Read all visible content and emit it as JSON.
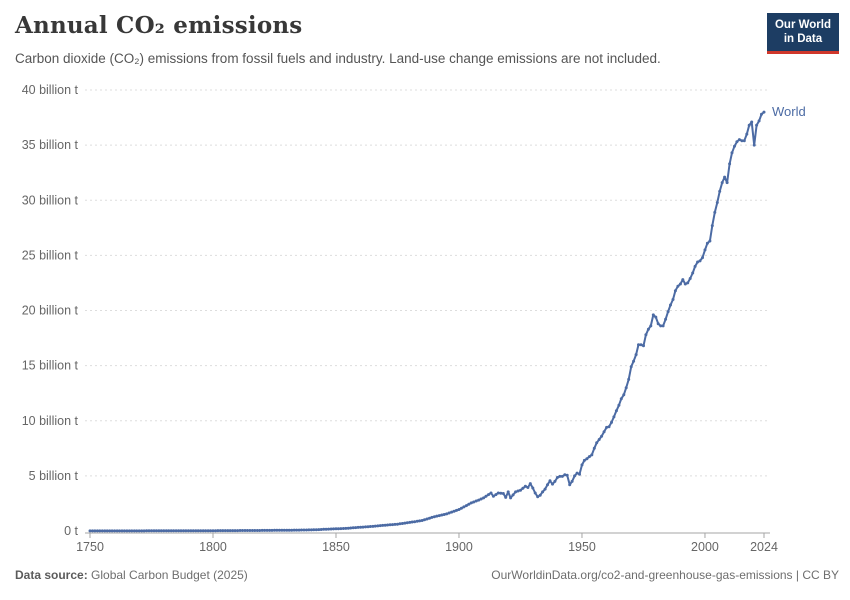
{
  "header": {
    "title": "Annual CO₂ emissions",
    "subtitle": "Carbon dioxide (CO₂) emissions from fossil fuels and industry. Land-use change emissions are not included.",
    "logo": {
      "line1": "Our World",
      "line2": "in Data"
    }
  },
  "footer": {
    "source_label": "Data source:",
    "source_text": " Global Carbon Budget (2025)",
    "rights_text": "OurWorldinData.org/co2-and-greenhouse-gas-emissions | CC BY"
  },
  "colors": {
    "line": "#4C6BA4",
    "grid": "#DDDDDD",
    "axis": "#A5A5A5",
    "tick_text": "#666666",
    "logo_bg": "#1D3D63",
    "logo_accent": "#D0372B",
    "title_text": "#383838",
    "subtitle_text": "#555555"
  },
  "chart_data": {
    "type": "line",
    "title": "Annual CO₂ emissions",
    "xlabel": "",
    "ylabel": "",
    "unit": "billion t",
    "xlim": [
      1750,
      2024
    ],
    "ylim": [
      0,
      40
    ],
    "grid": "horizontal-dashed",
    "legend": "end-of-line-label",
    "line_color": "#4C6BA4",
    "x_ticks": [
      {
        "year": 1750,
        "label": "1750"
      },
      {
        "year": 1800,
        "label": "1800"
      },
      {
        "year": 1850,
        "label": "1850"
      },
      {
        "year": 1900,
        "label": "1900"
      },
      {
        "year": 1950,
        "label": "1950"
      },
      {
        "year": 2000,
        "label": "2000"
      },
      {
        "year": 2024,
        "label": "2024"
      }
    ],
    "y_ticks": [
      {
        "value": 0,
        "label": "0 t"
      },
      {
        "value": 5,
        "label": "5 billion t"
      },
      {
        "value": 10,
        "label": "10 billion t"
      },
      {
        "value": 15,
        "label": "15 billion t"
      },
      {
        "value": 20,
        "label": "20 billion t"
      },
      {
        "value": 25,
        "label": "25 billion t"
      },
      {
        "value": 30,
        "label": "30 billion t"
      },
      {
        "value": 35,
        "label": "35 billion t"
      },
      {
        "value": 40,
        "label": "40 billion t"
      }
    ],
    "series": [
      {
        "name": "World",
        "points": [
          [
            1750,
            0.009
          ],
          [
            1760,
            0.011
          ],
          [
            1770,
            0.013
          ],
          [
            1780,
            0.016
          ],
          [
            1790,
            0.02
          ],
          [
            1800,
            0.03
          ],
          [
            1810,
            0.04
          ],
          [
            1820,
            0.05
          ],
          [
            1830,
            0.07
          ],
          [
            1840,
            0.1
          ],
          [
            1850,
            0.2
          ],
          [
            1855,
            0.25
          ],
          [
            1860,
            0.34
          ],
          [
            1865,
            0.42
          ],
          [
            1870,
            0.53
          ],
          [
            1875,
            0.62
          ],
          [
            1880,
            0.78
          ],
          [
            1885,
            0.95
          ],
          [
            1890,
            1.3
          ],
          [
            1895,
            1.55
          ],
          [
            1900,
            1.95
          ],
          [
            1903,
            2.3
          ],
          [
            1905,
            2.55
          ],
          [
            1908,
            2.8
          ],
          [
            1910,
            3.0
          ],
          [
            1913,
            3.45
          ],
          [
            1914,
            3.15
          ],
          [
            1916,
            3.45
          ],
          [
            1918,
            3.4
          ],
          [
            1919,
            3.05
          ],
          [
            1920,
            3.55
          ],
          [
            1921,
            3.0
          ],
          [
            1923,
            3.55
          ],
          [
            1925,
            3.7
          ],
          [
            1927,
            4.05
          ],
          [
            1928,
            3.95
          ],
          [
            1929,
            4.3
          ],
          [
            1930,
            3.9
          ],
          [
            1931,
            3.45
          ],
          [
            1932,
            3.1
          ],
          [
            1933,
            3.25
          ],
          [
            1934,
            3.55
          ],
          [
            1935,
            3.8
          ],
          [
            1936,
            4.2
          ],
          [
            1937,
            4.55
          ],
          [
            1938,
            4.25
          ],
          [
            1939,
            4.5
          ],
          [
            1940,
            4.85
          ],
          [
            1941,
            4.95
          ],
          [
            1942,
            4.95
          ],
          [
            1943,
            5.1
          ],
          [
            1944,
            5.05
          ],
          [
            1945,
            4.2
          ],
          [
            1946,
            4.5
          ],
          [
            1947,
            5.0
          ],
          [
            1948,
            5.25
          ],
          [
            1949,
            5.15
          ],
          [
            1950,
            6.0
          ],
          [
            1951,
            6.4
          ],
          [
            1952,
            6.55
          ],
          [
            1953,
            6.75
          ],
          [
            1954,
            6.9
          ],
          [
            1955,
            7.5
          ],
          [
            1956,
            8.0
          ],
          [
            1957,
            8.3
          ],
          [
            1958,
            8.6
          ],
          [
            1959,
            9.0
          ],
          [
            1960,
            9.4
          ],
          [
            1961,
            9.45
          ],
          [
            1962,
            9.85
          ],
          [
            1963,
            10.35
          ],
          [
            1964,
            10.9
          ],
          [
            1965,
            11.4
          ],
          [
            1966,
            12.0
          ],
          [
            1967,
            12.35
          ],
          [
            1968,
            13.0
          ],
          [
            1969,
            13.75
          ],
          [
            1970,
            14.9
          ],
          [
            1971,
            15.4
          ],
          [
            1972,
            16.0
          ],
          [
            1973,
            16.9
          ],
          [
            1974,
            16.9
          ],
          [
            1975,
            16.8
          ],
          [
            1976,
            17.8
          ],
          [
            1977,
            18.3
          ],
          [
            1978,
            18.6
          ],
          [
            1979,
            19.6
          ],
          [
            1980,
            19.4
          ],
          [
            1981,
            18.8
          ],
          [
            1982,
            18.6
          ],
          [
            1983,
            18.6
          ],
          [
            1984,
            19.2
          ],
          [
            1985,
            19.9
          ],
          [
            1986,
            20.5
          ],
          [
            1987,
            21.0
          ],
          [
            1988,
            21.8
          ],
          [
            1989,
            22.2
          ],
          [
            1990,
            22.4
          ],
          [
            1991,
            22.8
          ],
          [
            1992,
            22.4
          ],
          [
            1993,
            22.5
          ],
          [
            1994,
            22.9
          ],
          [
            1995,
            23.4
          ],
          [
            1996,
            24.0
          ],
          [
            1997,
            24.4
          ],
          [
            1998,
            24.5
          ],
          [
            1999,
            24.8
          ],
          [
            2000,
            25.5
          ],
          [
            2001,
            26.1
          ],
          [
            2002,
            26.3
          ],
          [
            2003,
            27.7
          ],
          [
            2004,
            28.9
          ],
          [
            2005,
            29.8
          ],
          [
            2006,
            30.8
          ],
          [
            2007,
            31.6
          ],
          [
            2008,
            32.1
          ],
          [
            2009,
            31.6
          ],
          [
            2010,
            33.3
          ],
          [
            2011,
            34.3
          ],
          [
            2012,
            34.9
          ],
          [
            2013,
            35.3
          ],
          [
            2014,
            35.5
          ],
          [
            2015,
            35.4
          ],
          [
            2016,
            35.4
          ],
          [
            2017,
            36.0
          ],
          [
            2018,
            36.8
          ],
          [
            2019,
            37.1
          ],
          [
            2020,
            35.0
          ],
          [
            2021,
            36.8
          ],
          [
            2022,
            37.2
          ],
          [
            2023,
            37.8
          ],
          [
            2024,
            38.0
          ]
        ]
      }
    ]
  }
}
